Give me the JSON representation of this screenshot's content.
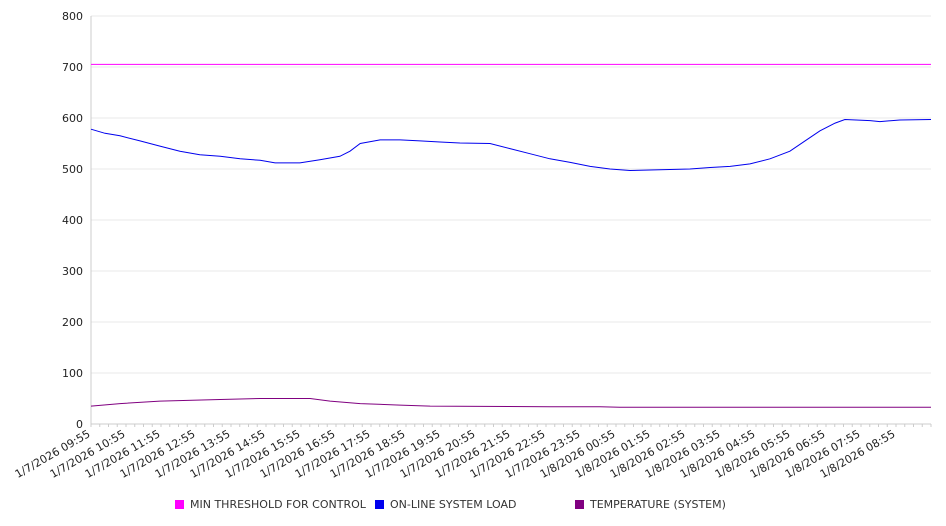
{
  "chart_data": {
    "type": "line",
    "title": "",
    "xlabel": "",
    "ylabel": "",
    "ylim": [
      0,
      800
    ],
    "yticks": [
      "0",
      "100",
      "200",
      "300",
      "400",
      "500",
      "600",
      "700",
      "800"
    ],
    "xticks": [
      "1/7/2026 09:55",
      "1/7/2026 10:55",
      "1/7/2026 11:55",
      "1/7/2026 12:55",
      "1/7/2026 13:55",
      "1/7/2026 14:55",
      "1/7/2026 15:55",
      "1/7/2026 16:55",
      "1/7/2026 17:55",
      "1/7/2026 18:55",
      "1/7/2026 19:55",
      "1/7/2026 20:55",
      "1/7/2026 21:55",
      "1/7/2026 22:55",
      "1/7/2026 23:55",
      "1/8/2026 00:55",
      "1/8/2026 01:55",
      "1/8/2026 02:55",
      "1/8/2026 03:55",
      "1/8/2026 04:55",
      "1/8/2026 05:55",
      "1/8/2026 06:55",
      "1/8/2026 07:55",
      "1/8/2026 08:55"
    ],
    "x_unit": "hours since 1/7/2026 09:55",
    "xlim": [
      0,
      24
    ],
    "grid": true,
    "legend_position": "bottom",
    "series": [
      {
        "name": "MIN THRESHOLD FOR CONTROL",
        "color": "#ff00ff",
        "x": [
          0,
          24
        ],
        "y": [
          705,
          705
        ]
      },
      {
        "name": "ON-LINE SYSTEM LOAD",
        "color": "#0000ee",
        "x": [
          0,
          0.4,
          0.83,
          1.4,
          1.97,
          2.54,
          3.11,
          3.69,
          4.26,
          4.83,
          5.26,
          5.97,
          6.54,
          7.11,
          7.4,
          7.69,
          8.26,
          8.83,
          9.4,
          9.97,
          10.54,
          11.4,
          11.97,
          12.54,
          13.11,
          13.69,
          14.26,
          14.83,
          15.4,
          15.97,
          16.54,
          17.11,
          17.69,
          18.26,
          18.83,
          19.4,
          19.97,
          20.4,
          20.83,
          21.26,
          21.54,
          22.26,
          22.54,
          23.11,
          24
        ],
        "y": [
          578,
          570,
          565,
          555,
          545,
          535,
          528,
          525,
          520,
          517,
          512,
          512,
          518,
          525,
          535,
          550,
          557,
          557,
          555,
          553,
          551,
          550,
          540,
          530,
          520,
          513,
          505,
          500,
          497,
          498,
          499,
          500,
          503,
          505,
          510,
          520,
          535,
          555,
          575,
          590,
          597,
          595,
          593,
          596,
          597
        ]
      },
      {
        "name": "TEMPERATURE (SYSTEM)",
        "color": "#800080",
        "x": [
          0,
          0.83,
          1.97,
          3.69,
          4.83,
          6.26,
          6.83,
          7.69,
          8.83,
          9.69,
          13.11,
          14.54,
          15.11,
          24
        ],
        "y": [
          35,
          40,
          45,
          48,
          50,
          50,
          45,
          40,
          37,
          35,
          34,
          34,
          33,
          33
        ]
      }
    ]
  }
}
